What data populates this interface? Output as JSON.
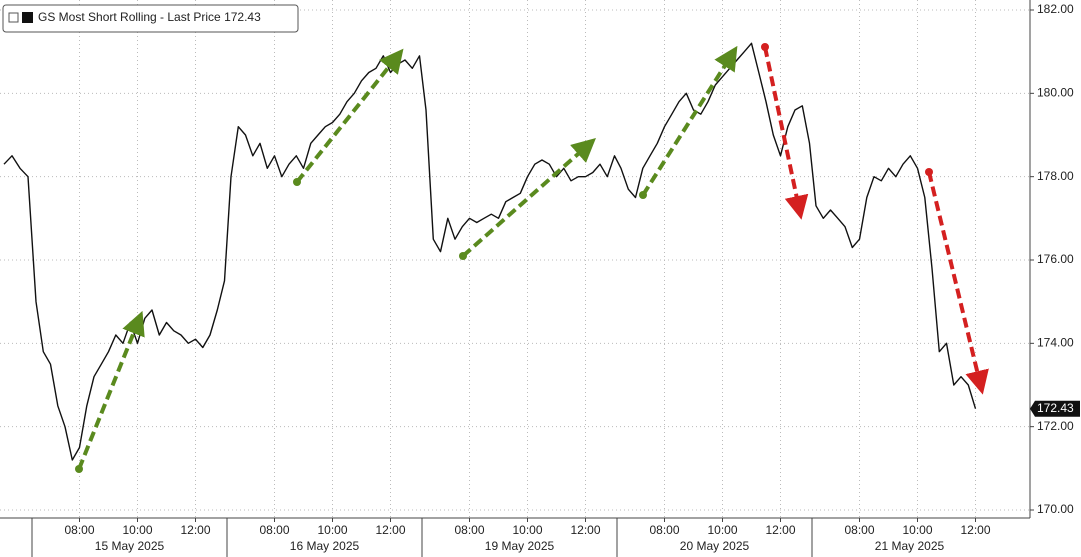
{
  "chart_data": {
    "type": "line",
    "title": "GS Most Short Rolling - Last Price 172.43",
    "x": [
      null,
      null,
      null,
      null,
      "15 May 2025 06:30",
      "15 May 2025 06:45",
      "15 May 2025 07:00",
      "15 May 2025 07:15",
      "15 May 2025 07:30",
      "15 May 2025 07:45",
      "15 May 2025 08:00",
      "15 May 2025 08:15",
      "15 May 2025 08:30",
      "15 May 2025 08:45",
      "15 May 2025 09:00",
      "15 May 2025 09:15",
      "15 May 2025 09:30",
      "15 May 2025 09:45",
      "15 May 2025 10:00",
      "15 May 2025 10:15",
      "15 May 2025 10:30",
      "15 May 2025 10:45",
      "15 May 2025 11:00",
      "15 May 2025 11:15",
      "15 May 2025 11:30",
      "15 May 2025 11:45",
      "15 May 2025 12:00",
      "15 May 2025 12:15",
      "15 May 2025 12:30",
      "15 May 2025 12:45",
      "15 May 2025 13:00",
      "16 May 2025 06:30",
      "16 May 2025 06:45",
      "16 May 2025 07:00",
      "16 May 2025 07:15",
      "16 May 2025 07:30",
      "16 May 2025 07:45",
      "16 May 2025 08:00",
      "16 May 2025 08:15",
      "16 May 2025 08:30",
      "16 May 2025 08:45",
      "16 May 2025 09:00",
      "16 May 2025 09:15",
      "16 May 2025 09:30",
      "16 May 2025 09:45",
      "16 May 2025 10:00",
      "16 May 2025 10:15",
      "16 May 2025 10:30",
      "16 May 2025 10:45",
      "16 May 2025 11:00",
      "16 May 2025 11:15",
      "16 May 2025 11:30",
      "16 May 2025 11:45",
      "16 May 2025 12:00",
      "16 May 2025 12:15",
      "16 May 2025 12:30",
      "16 May 2025 12:45",
      "16 May 2025 13:00",
      "19 May 2025 06:30",
      "19 May 2025 06:45",
      "19 May 2025 07:00",
      "19 May 2025 07:15",
      "19 May 2025 07:30",
      "19 May 2025 07:45",
      "19 May 2025 08:00",
      "19 May 2025 08:15",
      "19 May 2025 08:30",
      "19 May 2025 08:45",
      "19 May 2025 09:00",
      "19 May 2025 09:15",
      "19 May 2025 09:30",
      "19 May 2025 09:45",
      "19 May 2025 10:00",
      "19 May 2025 10:15",
      "19 May 2025 10:30",
      "19 May 2025 10:45",
      "19 May 2025 11:00",
      "19 May 2025 11:15",
      "19 May 2025 11:30",
      "19 May 2025 11:45",
      "19 May 2025 12:00",
      "19 May 2025 12:15",
      "19 May 2025 12:30",
      "19 May 2025 12:45",
      "19 May 2025 13:00",
      "20 May 2025 06:30",
      "20 May 2025 06:45",
      "20 May 2025 07:00",
      "20 May 2025 07:15",
      "20 May 2025 07:30",
      "20 May 2025 07:45",
      "20 May 2025 08:00",
      "20 May 2025 08:15",
      "20 May 2025 08:30",
      "20 May 2025 08:45",
      "20 May 2025 09:00",
      "20 May 2025 09:15",
      "20 May 2025 09:30",
      "20 May 2025 09:45",
      "20 May 2025 10:00",
      "20 May 2025 10:15",
      "20 May 2025 10:30",
      "20 May 2025 10:45",
      "20 May 2025 11:00",
      "20 May 2025 11:15",
      "20 May 2025 11:30",
      "20 May 2025 11:45",
      "20 May 2025 12:00",
      "20 May 2025 12:15",
      "20 May 2025 12:30",
      "20 May 2025 12:45",
      "20 May 2025 13:00",
      "21 May 2025 06:30",
      "21 May 2025 06:45",
      "21 May 2025 07:00",
      "21 May 2025 07:15",
      "21 May 2025 07:30",
      "21 May 2025 07:45",
      "21 May 2025 08:00",
      "21 May 2025 08:15",
      "21 May 2025 08:30",
      "21 May 2025 08:45",
      "21 May 2025 09:00",
      "21 May 2025 09:15",
      "21 May 2025 09:30",
      "21 May 2025 09:45",
      "21 May 2025 10:00",
      "21 May 2025 10:15",
      "21 May 2025 10:30",
      "21 May 2025 10:45",
      "21 May 2025 11:00",
      "21 May 2025 11:15",
      "21 May 2025 11:30",
      "21 May 2025 11:45",
      "21 May 2025 12:00",
      "21 May 2025 12:15",
      "21 May 2025 12:30",
      "21 May 2025 12:45",
      "21 May 2025 13:00"
    ],
    "series": [
      {
        "name": "GS Most Short Rolling",
        "color": "#111111",
        "values": [
          178.3,
          178.5,
          178.2,
          178.0,
          175.0,
          173.8,
          173.5,
          172.5,
          172.0,
          171.2,
          171.5,
          172.5,
          173.2,
          173.5,
          173.8,
          174.2,
          174.0,
          174.5,
          174.0,
          174.6,
          174.8,
          174.2,
          174.5,
          174.3,
          174.2,
          174.0,
          174.1,
          173.9,
          174.2,
          174.8,
          175.5,
          178.0,
          179.2,
          179.0,
          178.5,
          178.8,
          178.2,
          178.5,
          178.0,
          178.3,
          178.5,
          178.2,
          178.8,
          179.0,
          179.2,
          179.3,
          179.5,
          179.8,
          180.0,
          180.3,
          180.5,
          180.6,
          180.9,
          180.5,
          180.7,
          180.8,
          180.6,
          180.9,
          179.6,
          176.5,
          176.2,
          177.0,
          176.5,
          176.8,
          177.0,
          176.9,
          177.0,
          177.1,
          177.0,
          177.4,
          177.5,
          177.6,
          178.0,
          178.3,
          178.4,
          178.3,
          178.0,
          178.2,
          177.9,
          178.0,
          178.0,
          178.1,
          178.3,
          178.0,
          178.5,
          178.2,
          177.7,
          177.5,
          178.2,
          178.5,
          178.8,
          179.2,
          179.5,
          179.8,
          180.0,
          179.6,
          179.5,
          179.8,
          180.2,
          180.4,
          180.6,
          180.8,
          181.0,
          181.2,
          180.5,
          179.8,
          179.0,
          178.5,
          179.2,
          179.6,
          179.7,
          178.8,
          177.3,
          177.0,
          177.2,
          177.0,
          176.8,
          176.3,
          176.5,
          177.5,
          178.0,
          177.9,
          178.2,
          178.0,
          178.3,
          178.5,
          178.2,
          177.5,
          175.8,
          173.8,
          174.0,
          173.0,
          173.2,
          173.0,
          172.43,
          null,
          null,
          null,
          null
        ]
      }
    ],
    "last_price": 172.43,
    "x_groups": [
      "15 May 2025",
      "16 May 2025",
      "19 May 2025",
      "20 May 2025",
      "21 May 2025"
    ],
    "xticks": [
      {
        "value": "15 May 2025 08:00",
        "label": "08:00"
      },
      {
        "value": "15 May 2025 10:00",
        "label": "10:00"
      },
      {
        "value": "15 May 2025 12:00",
        "label": "12:00"
      },
      {
        "value": "16 May 2025 08:00",
        "label": "08:00"
      },
      {
        "value": "16 May 2025 10:00",
        "label": "10:00"
      },
      {
        "value": "16 May 2025 12:00",
        "label": "12:00"
      },
      {
        "value": "19 May 2025 08:00",
        "label": "08:00"
      },
      {
        "value": "19 May 2025 10:00",
        "label": "10:00"
      },
      {
        "value": "19 May 2025 12:00",
        "label": "12:00"
      },
      {
        "value": "20 May 2025 08:00",
        "label": "08:00"
      },
      {
        "value": "20 May 2025 10:00",
        "label": "10:00"
      },
      {
        "value": "20 May 2025 12:00",
        "label": "12:00"
      },
      {
        "value": "21 May 2025 08:00",
        "label": "08:00"
      },
      {
        "value": "21 May 2025 10:00",
        "label": "10:00"
      },
      {
        "value": "21 May 2025 12:00",
        "label": "12:00"
      }
    ],
    "ylim": [
      170,
      182
    ],
    "yticks": [
      {
        "value": 170,
        "label": "170.00"
      },
      {
        "value": 172,
        "label": "172.00"
      },
      {
        "value": 174,
        "label": "174.00"
      },
      {
        "value": 176,
        "label": "176.00"
      },
      {
        "value": 178,
        "label": "178.00"
      },
      {
        "value": 180,
        "label": "180.00"
      },
      {
        "value": 182,
        "label": "182.00"
      }
    ],
    "grid": true
  }
}
